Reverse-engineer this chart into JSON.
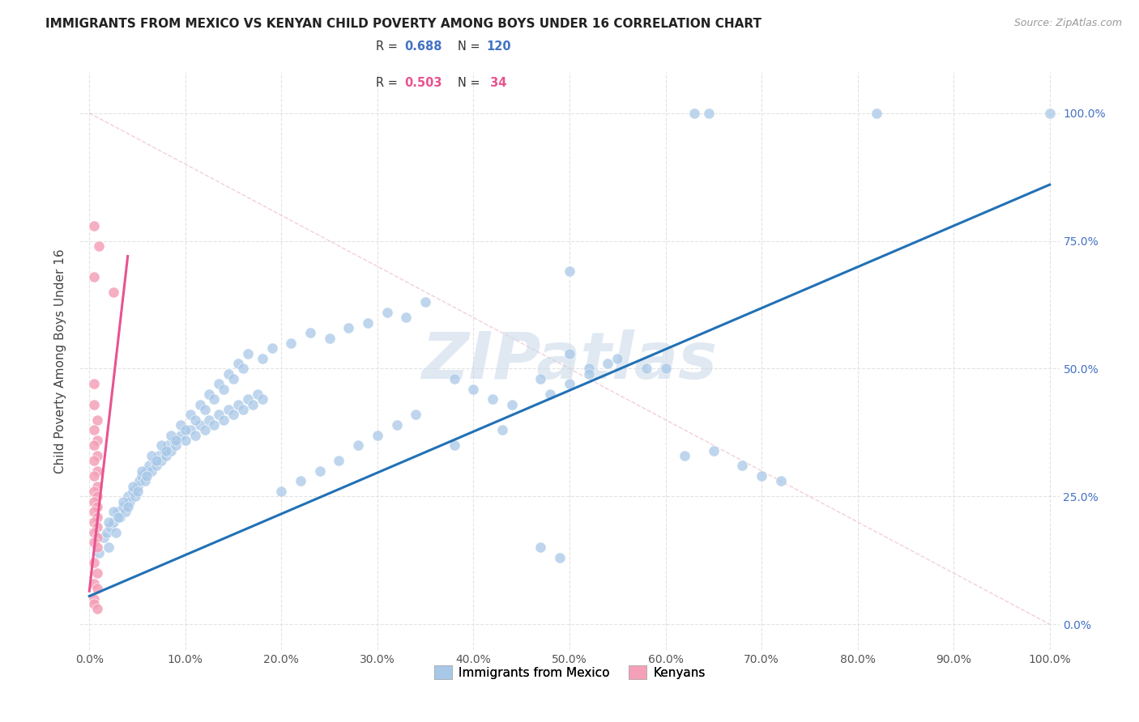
{
  "title": "IMMIGRANTS FROM MEXICO VS KENYAN CHILD POVERTY AMONG BOYS UNDER 16 CORRELATION CHART",
  "source": "Source: ZipAtlas.com",
  "ylabel": "Child Poverty Among Boys Under 16",
  "legend_blue_R": "0.688",
  "legend_blue_N": "120",
  "legend_pink_R": "0.503",
  "legend_pink_N": "34",
  "legend_label_blue": "Immigrants from Mexico",
  "legend_label_pink": "Kenyans",
  "watermark": "ZIPatlas",
  "blue_color": "#a8c8e8",
  "pink_color": "#f4a0b8",
  "blue_line_color": "#2171b5",
  "pink_line_color": "#e8538f",
  "diag_color": "#e0b0c0",
  "background_color": "#ffffff",
  "grid_color": "#e0e0e0",
  "blue_scatter": [
    [
      0.01,
      0.14
    ],
    [
      0.015,
      0.17
    ],
    [
      0.018,
      0.18
    ],
    [
      0.02,
      0.15
    ],
    [
      0.022,
      0.19
    ],
    [
      0.025,
      0.2
    ],
    [
      0.028,
      0.18
    ],
    [
      0.03,
      0.22
    ],
    [
      0.032,
      0.21
    ],
    [
      0.035,
      0.23
    ],
    [
      0.038,
      0.22
    ],
    [
      0.04,
      0.25
    ],
    [
      0.042,
      0.24
    ],
    [
      0.045,
      0.26
    ],
    [
      0.048,
      0.25
    ],
    [
      0.05,
      0.27
    ],
    [
      0.052,
      0.28
    ],
    [
      0.055,
      0.29
    ],
    [
      0.058,
      0.28
    ],
    [
      0.06,
      0.3
    ],
    [
      0.062,
      0.31
    ],
    [
      0.065,
      0.3
    ],
    [
      0.068,
      0.32
    ],
    [
      0.07,
      0.31
    ],
    [
      0.072,
      0.33
    ],
    [
      0.075,
      0.32
    ],
    [
      0.078,
      0.34
    ],
    [
      0.08,
      0.33
    ],
    [
      0.082,
      0.35
    ],
    [
      0.085,
      0.34
    ],
    [
      0.088,
      0.36
    ],
    [
      0.09,
      0.35
    ],
    [
      0.095,
      0.37
    ],
    [
      0.1,
      0.36
    ],
    [
      0.105,
      0.38
    ],
    [
      0.11,
      0.37
    ],
    [
      0.115,
      0.39
    ],
    [
      0.12,
      0.38
    ],
    [
      0.125,
      0.4
    ],
    [
      0.13,
      0.39
    ],
    [
      0.135,
      0.41
    ],
    [
      0.14,
      0.4
    ],
    [
      0.145,
      0.42
    ],
    [
      0.15,
      0.41
    ],
    [
      0.155,
      0.43
    ],
    [
      0.16,
      0.42
    ],
    [
      0.165,
      0.44
    ],
    [
      0.17,
      0.43
    ],
    [
      0.175,
      0.45
    ],
    [
      0.18,
      0.44
    ],
    [
      0.02,
      0.2
    ],
    [
      0.025,
      0.22
    ],
    [
      0.03,
      0.21
    ],
    [
      0.035,
      0.24
    ],
    [
      0.04,
      0.23
    ],
    [
      0.045,
      0.27
    ],
    [
      0.05,
      0.26
    ],
    [
      0.055,
      0.3
    ],
    [
      0.06,
      0.29
    ],
    [
      0.065,
      0.33
    ],
    [
      0.07,
      0.32
    ],
    [
      0.075,
      0.35
    ],
    [
      0.08,
      0.34
    ],
    [
      0.085,
      0.37
    ],
    [
      0.09,
      0.36
    ],
    [
      0.095,
      0.39
    ],
    [
      0.1,
      0.38
    ],
    [
      0.105,
      0.41
    ],
    [
      0.11,
      0.4
    ],
    [
      0.115,
      0.43
    ],
    [
      0.12,
      0.42
    ],
    [
      0.125,
      0.45
    ],
    [
      0.13,
      0.44
    ],
    [
      0.135,
      0.47
    ],
    [
      0.14,
      0.46
    ],
    [
      0.145,
      0.49
    ],
    [
      0.15,
      0.48
    ],
    [
      0.155,
      0.51
    ],
    [
      0.16,
      0.5
    ],
    [
      0.165,
      0.53
    ],
    [
      0.18,
      0.52
    ],
    [
      0.19,
      0.54
    ],
    [
      0.21,
      0.55
    ],
    [
      0.23,
      0.57
    ],
    [
      0.25,
      0.56
    ],
    [
      0.27,
      0.58
    ],
    [
      0.29,
      0.59
    ],
    [
      0.31,
      0.61
    ],
    [
      0.33,
      0.6
    ],
    [
      0.35,
      0.63
    ],
    [
      0.38,
      0.48
    ],
    [
      0.4,
      0.46
    ],
    [
      0.42,
      0.44
    ],
    [
      0.44,
      0.43
    ],
    [
      0.47,
      0.15
    ],
    [
      0.49,
      0.13
    ],
    [
      0.5,
      0.69
    ],
    [
      0.52,
      0.5
    ],
    [
      0.55,
      0.52
    ],
    [
      0.58,
      0.5
    ],
    [
      0.6,
      0.5
    ],
    [
      0.62,
      0.33
    ],
    [
      0.65,
      0.34
    ],
    [
      0.68,
      0.31
    ],
    [
      0.7,
      0.29
    ],
    [
      0.72,
      0.28
    ],
    [
      0.48,
      0.45
    ],
    [
      0.5,
      0.47
    ],
    [
      0.52,
      0.49
    ],
    [
      0.54,
      0.51
    ],
    [
      0.5,
      0.53
    ],
    [
      0.47,
      0.48
    ],
    [
      0.43,
      0.38
    ],
    [
      0.38,
      0.35
    ],
    [
      0.2,
      0.26
    ],
    [
      0.22,
      0.28
    ],
    [
      0.24,
      0.3
    ],
    [
      0.26,
      0.32
    ],
    [
      0.28,
      0.35
    ],
    [
      0.3,
      0.37
    ],
    [
      0.32,
      0.39
    ],
    [
      0.34,
      0.41
    ]
  ],
  "pink_scatter": [
    [
      0.005,
      0.78
    ],
    [
      0.01,
      0.74
    ],
    [
      0.005,
      0.68
    ],
    [
      0.025,
      0.65
    ],
    [
      0.005,
      0.47
    ],
    [
      0.005,
      0.43
    ],
    [
      0.008,
      0.4
    ],
    [
      0.005,
      0.38
    ],
    [
      0.008,
      0.36
    ],
    [
      0.005,
      0.35
    ],
    [
      0.008,
      0.33
    ],
    [
      0.005,
      0.32
    ],
    [
      0.008,
      0.3
    ],
    [
      0.005,
      0.29
    ],
    [
      0.008,
      0.27
    ],
    [
      0.005,
      0.26
    ],
    [
      0.008,
      0.25
    ],
    [
      0.005,
      0.24
    ],
    [
      0.008,
      0.23
    ],
    [
      0.005,
      0.22
    ],
    [
      0.008,
      0.21
    ],
    [
      0.005,
      0.2
    ],
    [
      0.008,
      0.19
    ],
    [
      0.005,
      0.18
    ],
    [
      0.008,
      0.17
    ],
    [
      0.005,
      0.16
    ],
    [
      0.008,
      0.15
    ],
    [
      0.005,
      0.12
    ],
    [
      0.008,
      0.1
    ],
    [
      0.005,
      0.08
    ],
    [
      0.008,
      0.07
    ],
    [
      0.005,
      0.05
    ],
    [
      0.005,
      0.04
    ],
    [
      0.008,
      0.03
    ]
  ],
  "blue_line_x": [
    0.0,
    1.0
  ],
  "blue_line_y": [
    0.055,
    0.86
  ],
  "pink_line_x": [
    0.0,
    0.04
  ],
  "pink_line_y": [
    0.065,
    0.72
  ],
  "diag_line": [
    [
      0.0,
      1.0
    ],
    [
      1.0,
      0.0
    ]
  ],
  "blue_top_dots": [
    [
      0.63,
      1.0
    ],
    [
      0.645,
      1.0
    ],
    [
      0.82,
      1.0
    ],
    [
      1.0,
      1.0
    ]
  ],
  "xlim": [
    -0.01,
    1.01
  ],
  "ylim": [
    -0.05,
    1.08
  ],
  "xticks": [
    0.0,
    0.1,
    0.2,
    0.3,
    0.4,
    0.5,
    0.6,
    0.7,
    0.8,
    0.9,
    1.0
  ],
  "yticks": [
    0.0,
    0.25,
    0.5,
    0.75,
    1.0
  ],
  "title_fontsize": 11,
  "source_fontsize": 9,
  "tick_fontsize": 10,
  "ylabel_fontsize": 11
}
